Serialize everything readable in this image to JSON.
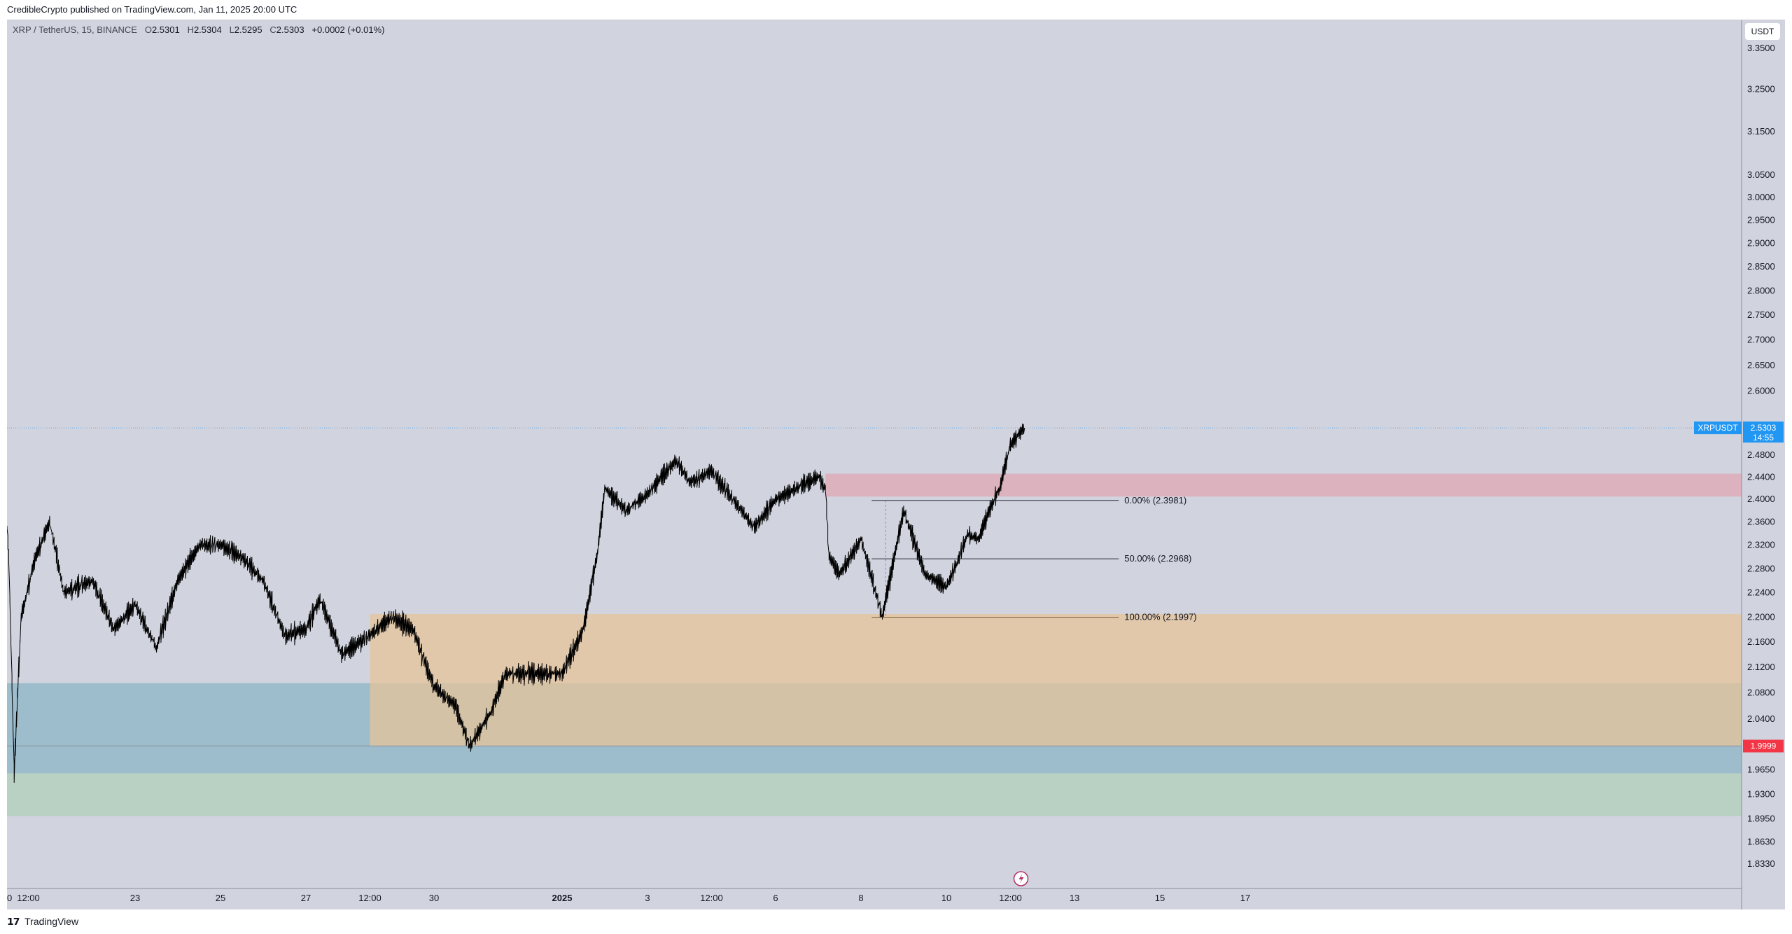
{
  "header": {
    "publisher_line": "CredibleCrypto published on TradingView.com, Jan 11, 2025 20:00 UTC"
  },
  "legend": {
    "symbol": "XRP / TetherUS, 15, BINANCE",
    "open_label": "O",
    "open": "2.5301",
    "high_label": "H",
    "high": "2.5304",
    "low_label": "L",
    "low": "2.5295",
    "close_label": "C",
    "close": "2.5303",
    "change": "+0.0002 (+0.01%)"
  },
  "currency_button": "USDT",
  "footer": {
    "logo": "𝟭𝟳",
    "brand": "TradingView"
  },
  "colors": {
    "background": "#d1d4de",
    "candles": "#000000",
    "last_price_badge": "#2196f3",
    "low_marker_badge": "#f23645",
    "zone_resistance": "#e0a7b4",
    "zone_demand_orange": "#e5c49a",
    "zone_demand_blue": "#94b4cf",
    "zone_demand_green": "#b0d0ba"
  },
  "chart_data": {
    "type": "candlestick",
    "symbol": "XRP / TetherUS",
    "timeframe": "15",
    "exchange": "BINANCE",
    "y_axis": {
      "scale": "log",
      "ylim": [
        1.8,
        3.42
      ],
      "ticks": [
        "3.3500",
        "3.2500",
        "3.1500",
        "3.0500",
        "3.0000",
        "2.9500",
        "2.9000",
        "2.8500",
        "2.8000",
        "2.7500",
        "2.7000",
        "2.6500",
        "2.6000",
        "2.4800",
        "2.4400",
        "2.4000",
        "2.3600",
        "2.3200",
        "2.2800",
        "2.2400",
        "2.2000",
        "2.1600",
        "2.1200",
        "2.0800",
        "2.0400",
        "1.9650",
        "1.9300",
        "1.8950",
        "1.8630",
        "1.8330"
      ]
    },
    "x_axis": {
      "ticks": [
        "0",
        "12:00",
        "23",
        "25",
        "27",
        "12:00",
        "30",
        "2025",
        "3",
        "12:00",
        "6",
        "8",
        "10",
        "12:00",
        "13",
        "15",
        "17"
      ]
    },
    "price_path": [
      [
        "Dec 20 00:00",
        2.35
      ],
      [
        "Dec 20 01:00",
        2.3
      ],
      [
        "Dec 20 04:00",
        1.96
      ],
      [
        "Dec 20 08:00",
        2.2
      ],
      [
        "Dec 20 16:00",
        2.3
      ],
      [
        "Dec 21 00:00",
        2.36
      ],
      [
        "Dec 21 08:00",
        2.24
      ],
      [
        "Dec 22 00:00",
        2.26
      ],
      [
        "Dec 22 12:00",
        2.18
      ],
      [
        "Dec 23 00:00",
        2.22
      ],
      [
        "Dec 23 12:00",
        2.15
      ],
      [
        "Dec 24 00:00",
        2.26
      ],
      [
        "Dec 24 12:00",
        2.32
      ],
      [
        "Dec 25 00:00",
        2.32
      ],
      [
        "Dec 25 12:00",
        2.3
      ],
      [
        "Dec 26 00:00",
        2.26
      ],
      [
        "Dec 26 12:00",
        2.17
      ],
      [
        "Dec 27 00:00",
        2.18
      ],
      [
        "Dec 27 08:00",
        2.23
      ],
      [
        "Dec 27 20:00",
        2.14
      ],
      [
        "Dec 28 12:00",
        2.17
      ],
      [
        "Dec 29 00:00",
        2.2
      ],
      [
        "Dec 29 12:00",
        2.18
      ],
      [
        "Dec 30 00:00",
        2.09
      ],
      [
        "Dec 30 12:00",
        2.06
      ],
      [
        "Dec 30 20:00",
        2.0
      ],
      [
        "Dec 31 08:00",
        2.05
      ],
      [
        "Dec 31 16:00",
        2.11
      ],
      [
        "Jan 1 00:00",
        2.11
      ],
      [
        "Jan 1 12:00",
        2.18
      ],
      [
        "Jan 1 20:00",
        2.31
      ],
      [
        "Jan 2 00:00",
        2.42
      ],
      [
        "Jan 2 12:00",
        2.38
      ],
      [
        "Jan 3 00:00",
        2.41
      ],
      [
        "Jan 3 16:00",
        2.47
      ],
      [
        "Jan 4 00:00",
        2.43
      ],
      [
        "Jan 4 12:00",
        2.45
      ],
      [
        "Jan 5 00:00",
        2.4
      ],
      [
        "Jan 5 12:00",
        2.35
      ],
      [
        "Jan 6 00:00",
        2.4
      ],
      [
        "Jan 6 12:00",
        2.42
      ],
      [
        "Jan 7 00:00",
        2.44
      ],
      [
        "Jan 7 04:00",
        2.42
      ],
      [
        "Jan 7 06:00",
        2.3
      ],
      [
        "Jan 7 12:00",
        2.27
      ],
      [
        "Jan 8 00:00",
        2.33
      ],
      [
        "Jan 8 12:00",
        2.2
      ],
      [
        "Jan 8 20:00",
        2.32
      ],
      [
        "Jan 9 00:00",
        2.38
      ],
      [
        "Jan 9 12:00",
        2.27
      ],
      [
        "Jan 10 00:00",
        2.25
      ],
      [
        "Jan 10 06:00",
        2.29
      ],
      [
        "Jan 10 12:00",
        2.34
      ],
      [
        "Jan 10 18:00",
        2.33
      ],
      [
        "Jan 11 00:00",
        2.38
      ],
      [
        "Jan 11 06:00",
        2.42
      ],
      [
        "Jan 11 12:00",
        2.5
      ],
      [
        "Jan 11 20:00",
        2.5303
      ]
    ],
    "annotations": {
      "last_price": {
        "symbol": "XRPUSDT",
        "value": "2.5303",
        "countdown": "14:55"
      },
      "low_marker": "1.9999",
      "fib_levels": [
        {
          "label": "0.00% (2.3981)",
          "value": 2.3981
        },
        {
          "label": "50.00% (2.2968)",
          "value": 2.2968
        },
        {
          "label": "100.00% (2.1997)",
          "value": 2.1997
        }
      ],
      "zones": [
        {
          "name": "resistance",
          "from": 2.405,
          "to": 2.446
        },
        {
          "name": "orange-demand",
          "from": 1.9999,
          "to": 2.205
        },
        {
          "name": "blue-demand",
          "from": 1.96,
          "to": 2.095
        },
        {
          "name": "green-demand",
          "from": 1.899,
          "to": 2.095
        }
      ]
    }
  }
}
